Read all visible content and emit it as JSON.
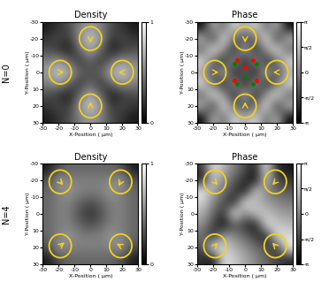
{
  "chart_data": [
    {
      "type": "heatmap",
      "title": "Density",
      "xlabel": "X-Position ( μm)",
      "ylabel": "Y-Position ( μm)",
      "annotations": [
        "N=0"
      ],
      "color": "gray",
      "xlim": [
        -30,
        30
      ],
      "ylim": [
        30,
        -30
      ],
      "xticks": [
        -30,
        -20,
        -10,
        0,
        10,
        20,
        30
      ],
      "yticks": [
        -30,
        -20,
        -10,
        0,
        10,
        20,
        30
      ],
      "cells": [
        [
          0.1,
          0.2,
          0.3,
          0.5,
          0.6,
          0.5,
          0.3,
          0.2,
          0.1
        ],
        [
          0.2,
          0.3,
          0.2,
          0.6,
          0.8,
          0.6,
          0.2,
          0.3,
          0.2
        ],
        [
          0.3,
          0.2,
          0.1,
          0.4,
          0.7,
          0.4,
          0.1,
          0.2,
          0.3
        ],
        [
          0.5,
          0.6,
          0.4,
          0.2,
          0.4,
          0.2,
          0.4,
          0.6,
          0.5
        ],
        [
          0.6,
          0.8,
          0.7,
          0.4,
          0.3,
          0.4,
          0.7,
          0.8,
          0.6
        ],
        [
          0.5,
          0.6,
          0.4,
          0.2,
          0.4,
          0.2,
          0.4,
          0.6,
          0.5
        ],
        [
          0.3,
          0.2,
          0.1,
          0.4,
          0.7,
          0.4,
          0.1,
          0.2,
          0.3
        ],
        [
          0.2,
          0.3,
          0.2,
          0.6,
          0.8,
          0.6,
          0.2,
          0.3,
          0.2
        ],
        [
          0.1,
          0.2,
          0.3,
          0.5,
          0.6,
          0.5,
          0.3,
          0.2,
          0.1
        ]
      ],
      "colorbar": {
        "range": [
          0,
          1
        ],
        "ticks": [
          0,
          1
        ]
      },
      "circles": [
        {
          "x": 0,
          "y": -20,
          "r": 7,
          "arrow": [
            0,
            4
          ]
        },
        {
          "x": -19,
          "y": 0,
          "r": 7,
          "arrow": [
            4,
            0
          ]
        },
        {
          "x": 20,
          "y": 0,
          "r": 7,
          "arrow": [
            -4,
            0
          ]
        },
        {
          "x": 0,
          "y": 20,
          "r": 7,
          "arrow": [
            0,
            -4
          ]
        }
      ]
    },
    {
      "type": "heatmap",
      "title": "Phase",
      "xlabel": "X-Position ( μm)",
      "ylabel": "Y-Position ( μm)",
      "color": "gray",
      "xlim": [
        -30,
        30
      ],
      "ylim": [
        30,
        -30
      ],
      "xticks": [
        -30,
        -20,
        -10,
        0,
        10,
        20,
        30
      ],
      "yticks": [
        -30,
        -20,
        -10,
        0,
        10,
        20,
        30
      ],
      "cells": [
        [
          -3.0,
          1.5,
          -0.8,
          2.4,
          0.9,
          2.4,
          -0.8,
          1.5,
          -3.0
        ],
        [
          1.5,
          -2.2,
          2.8,
          -0.5,
          -1.6,
          -0.5,
          2.8,
          -2.2,
          1.5
        ],
        [
          -0.8,
          2.8,
          0.6,
          -2.5,
          2.0,
          -2.5,
          0.6,
          2.8,
          -0.8
        ],
        [
          2.4,
          -0.5,
          -2.5,
          1.0,
          -3.0,
          1.0,
          -2.5,
          -0.5,
          2.4
        ],
        [
          0.9,
          -1.6,
          2.0,
          -3.0,
          0.0,
          -3.0,
          2.0,
          -1.6,
          0.9
        ],
        [
          2.4,
          -0.5,
          -2.5,
          1.0,
          -3.0,
          1.0,
          -2.5,
          -0.5,
          2.4
        ],
        [
          -0.8,
          2.8,
          0.6,
          -2.5,
          2.0,
          -2.5,
          0.6,
          2.8,
          -0.8
        ],
        [
          1.5,
          -2.2,
          2.8,
          -0.5,
          -1.6,
          -0.5,
          2.8,
          -2.2,
          1.5
        ],
        [
          -3.0,
          1.5,
          -0.8,
          2.4,
          0.9,
          2.4,
          -0.8,
          1.5,
          -3.0
        ]
      ],
      "colorbar": {
        "range": [
          -3.14159,
          3.14159
        ],
        "ticks": [
          {
            "value": -3.14159,
            "label": "-π"
          },
          {
            "value": -1.5708,
            "label": "-π/2"
          },
          0,
          {
            "value": 1.5708,
            "label": "π/2"
          },
          {
            "value": 3.14159,
            "label": "π"
          }
        ]
      },
      "circles": [
        {
          "x": 0,
          "y": -20,
          "r": 7,
          "arrow": [
            0,
            4
          ]
        },
        {
          "x": -19,
          "y": 0,
          "r": 7,
          "arrow": [
            4,
            0
          ]
        },
        {
          "x": 20,
          "y": 0,
          "r": 7,
          "arrow": [
            -4,
            0
          ]
        },
        {
          "x": 0,
          "y": 20,
          "r": 7,
          "arrow": [
            0,
            -4
          ]
        }
      ],
      "markers": [
        {
          "color": "red",
          "points": [
            [
              -5,
              -7
            ],
            [
              5,
              -7
            ],
            [
              -7,
              5
            ],
            [
              7,
              5
            ],
            [
              0,
              -3
            ]
          ]
        },
        {
          "color": "green",
          "points": [
            [
              -7,
              -5
            ],
            [
              7,
              -5
            ],
            [
              -5,
              7
            ],
            [
              5,
              7
            ],
            [
              0,
              3
            ]
          ]
        }
      ]
    },
    {
      "type": "heatmap",
      "title": "Density",
      "xlabel": "X-Position ( μm)",
      "ylabel": "Y-Position ( μm)",
      "annotations": [
        "N=4"
      ],
      "color": "gray",
      "xlim": [
        -30,
        30
      ],
      "ylim": [
        30,
        -30
      ],
      "xticks": [
        -30,
        -20,
        -10,
        0,
        10,
        20,
        30
      ],
      "yticks": [
        -30,
        -20,
        -10,
        0,
        10,
        20,
        30
      ],
      "cells": [
        [
          0.1,
          0.3,
          0.4,
          0.4,
          0.4,
          0.4,
          0.4,
          0.3,
          0.1
        ],
        [
          0.3,
          0.6,
          0.5,
          0.5,
          0.5,
          0.5,
          0.5,
          0.6,
          0.3
        ],
        [
          0.4,
          0.5,
          0.6,
          0.5,
          0.5,
          0.5,
          0.6,
          0.5,
          0.4
        ],
        [
          0.4,
          0.5,
          0.5,
          0.4,
          0.3,
          0.4,
          0.5,
          0.5,
          0.4
        ],
        [
          0.4,
          0.5,
          0.5,
          0.3,
          0.2,
          0.3,
          0.5,
          0.5,
          0.4
        ],
        [
          0.4,
          0.5,
          0.5,
          0.4,
          0.3,
          0.4,
          0.5,
          0.5,
          0.4
        ],
        [
          0.4,
          0.5,
          0.6,
          0.5,
          0.5,
          0.5,
          0.6,
          0.5,
          0.4
        ],
        [
          0.3,
          0.6,
          0.5,
          0.5,
          0.5,
          0.5,
          0.5,
          0.6,
          0.3
        ],
        [
          0.1,
          0.3,
          0.4,
          0.4,
          0.4,
          0.4,
          0.4,
          0.3,
          0.1
        ]
      ],
      "colorbar": {
        "range": [
          0,
          1
        ],
        "ticks": [
          0,
          1
        ]
      },
      "circles": [
        {
          "x": -19,
          "y": -19,
          "r": 7,
          "arrow": [
            3,
            3
          ]
        },
        {
          "x": 19,
          "y": -19,
          "r": 7,
          "arrow": [
            -2,
            4
          ]
        },
        {
          "x": -19,
          "y": 19,
          "r": 7,
          "arrow": [
            4,
            -3
          ]
        },
        {
          "x": 19,
          "y": 19,
          "r": 7,
          "arrow": [
            -4,
            -2
          ]
        }
      ]
    },
    {
      "type": "heatmap",
      "title": "Phase",
      "xlabel": "X-Position ( μm)",
      "ylabel": "Y-Position ( μm)",
      "color": "gray",
      "xlim": [
        -30,
        30
      ],
      "ylim": [
        30,
        -30
      ],
      "xticks": [
        -30,
        -20,
        -10,
        0,
        10,
        20,
        30
      ],
      "yticks": [
        -30,
        -20,
        -10,
        0,
        10,
        20,
        30
      ],
      "cells": [
        [
          -2.0,
          -2.8,
          2.5,
          1.8,
          1.0,
          0.2,
          -0.6,
          -1.4,
          -2.2
        ],
        [
          -1.2,
          2.6,
          2.0,
          1.2,
          0.4,
          -0.4,
          -1.2,
          -2.0,
          3.0
        ],
        [
          -0.4,
          -2.2,
          1.0,
          0.2,
          -0.6,
          -1.6,
          -2.6,
          2.6,
          2.2
        ],
        [
          0.4,
          -1.4,
          -2.8,
          -1.0,
          -1.8,
          -2.8,
          2.4,
          1.8,
          1.4
        ],
        [
          1.2,
          -0.6,
          -2.0,
          3.0,
          0.0,
          2.0,
          1.6,
          1.0,
          0.6
        ],
        [
          2.0,
          0.2,
          -1.2,
          -2.4,
          2.8,
          1.2,
          0.8,
          0.2,
          -0.2
        ],
        [
          2.8,
          1.0,
          -0.4,
          -1.6,
          -2.8,
          2.2,
          0.0,
          -0.6,
          -1.0
        ],
        [
          -2.6,
          1.8,
          0.4,
          -0.8,
          -2.0,
          -3.0,
          2.0,
          -1.4,
          -1.8
        ],
        [
          -1.8,
          2.6,
          1.2,
          0.0,
          -1.2,
          -2.4,
          2.8,
          -2.2,
          -2.6
        ]
      ],
      "colorbar": {
        "range": [
          -3.14159,
          3.14159
        ],
        "ticks": [
          {
            "value": -3.14159,
            "label": "-π"
          },
          {
            "value": -1.5708,
            "label": "-π/2"
          },
          0,
          {
            "value": 1.5708,
            "label": "π/2"
          },
          {
            "value": 3.14159,
            "label": "π"
          }
        ]
      },
      "circles": [
        {
          "x": -19,
          "y": -19,
          "r": 7,
          "arrow": [
            3,
            3
          ]
        },
        {
          "x": 19,
          "y": -19,
          "r": 7,
          "arrow": [
            -3,
            3
          ]
        },
        {
          "x": -19,
          "y": 19,
          "r": 7,
          "arrow": [
            3,
            -3
          ]
        },
        {
          "x": 19,
          "y": 19,
          "r": 7,
          "arrow": [
            -3,
            -3
          ]
        }
      ]
    }
  ]
}
